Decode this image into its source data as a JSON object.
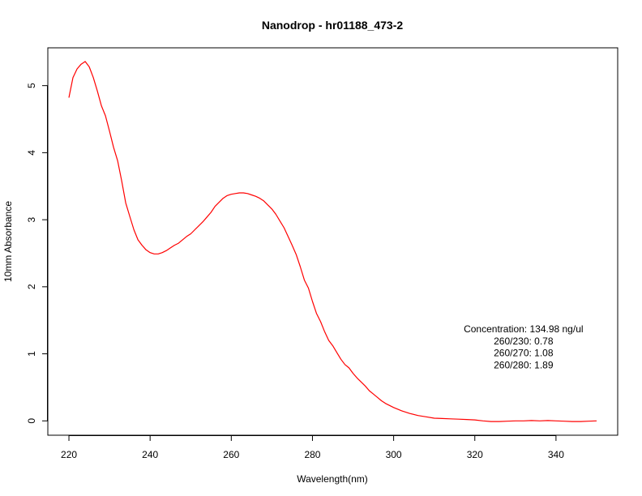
{
  "chart_data": {
    "type": "line",
    "title": "Nanodrop - hr01188_473-2",
    "xlabel": "Wavelength(nm)",
    "ylabel": "10mm Absorbance",
    "xlim": [
      220,
      350
    ],
    "ylim": [
      0,
      5.35
    ],
    "x_ticks": [
      220,
      240,
      260,
      280,
      300,
      320,
      340
    ],
    "y_ticks": [
      0,
      1,
      2,
      3,
      4,
      5
    ],
    "grid": false,
    "series": [
      {
        "color": "#ff0000",
        "x": [
          220,
          221,
          222,
          223,
          224,
          225,
          226,
          227,
          228,
          229,
          230,
          231,
          232,
          233,
          234,
          235,
          236,
          237,
          238,
          239,
          240,
          241,
          242,
          243,
          244,
          245,
          246,
          247,
          248,
          249,
          250,
          251,
          252,
          253,
          254,
          255,
          256,
          257,
          258,
          259,
          260,
          261,
          262,
          263,
          264,
          265,
          266,
          267,
          268,
          269,
          270,
          271,
          272,
          273,
          274,
          275,
          276,
          277,
          278,
          279,
          280,
          281,
          282,
          283,
          284,
          285,
          286,
          287,
          288,
          289,
          290,
          291,
          292,
          293,
          294,
          295,
          296,
          297,
          298,
          299,
          300,
          302,
          304,
          306,
          308,
          310,
          312,
          314,
          316,
          318,
          320,
          322,
          324,
          326,
          328,
          330,
          332,
          334,
          336,
          338,
          340,
          342,
          344,
          346,
          348,
          350
        ],
        "y": [
          4.82,
          5.12,
          5.25,
          5.32,
          5.36,
          5.28,
          5.12,
          4.92,
          4.7,
          4.55,
          4.32,
          4.08,
          3.88,
          3.58,
          3.25,
          3.05,
          2.85,
          2.7,
          2.62,
          2.55,
          2.51,
          2.49,
          2.49,
          2.51,
          2.54,
          2.58,
          2.62,
          2.65,
          2.7,
          2.75,
          2.79,
          2.85,
          2.91,
          2.97,
          3.04,
          3.11,
          3.2,
          3.26,
          3.32,
          3.36,
          3.38,
          3.39,
          3.4,
          3.4,
          3.39,
          3.37,
          3.35,
          3.32,
          3.28,
          3.22,
          3.16,
          3.08,
          2.98,
          2.88,
          2.75,
          2.62,
          2.48,
          2.3,
          2.1,
          1.98,
          1.78,
          1.6,
          1.48,
          1.33,
          1.2,
          1.12,
          1.02,
          0.92,
          0.84,
          0.79,
          0.71,
          0.64,
          0.58,
          0.52,
          0.45,
          0.4,
          0.35,
          0.3,
          0.26,
          0.23,
          0.2,
          0.15,
          0.11,
          0.08,
          0.06,
          0.04,
          0.035,
          0.03,
          0.025,
          0.02,
          0.015,
          0.0,
          -0.01,
          -0.01,
          -0.005,
          0.0,
          0.0,
          0.005,
          0.0,
          0.005,
          0.0,
          -0.005,
          -0.01,
          -0.01,
          -0.005,
          0.0
        ]
      }
    ],
    "annotations": [
      {
        "text": "Concentration: 134.98 ng/ul",
        "x": 332,
        "y": 1.37
      },
      {
        "text": "260/230: 0.78",
        "x": 332,
        "y": 1.19
      },
      {
        "text": "260/270: 1.08",
        "x": 332,
        "y": 1.01
      },
      {
        "text": "260/280: 1.89",
        "x": 332,
        "y": 0.83
      }
    ]
  }
}
